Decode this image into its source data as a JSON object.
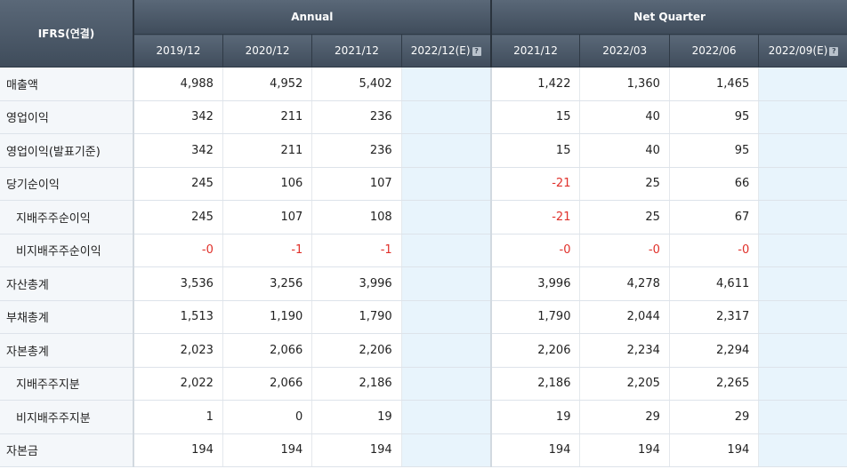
{
  "header": {
    "corner": "IFRS(연결)",
    "annual_label": "Annual",
    "quarter_label": "Net Quarter",
    "annual_periods": [
      "2019/12",
      "2020/12",
      "2021/12",
      "2022/12(E)"
    ],
    "quarter_periods": [
      "2021/12",
      "2022/03",
      "2022/06",
      "2022/09(E)"
    ],
    "estimate_icon": "?"
  },
  "rows": [
    {
      "label": "매출액",
      "sub": false,
      "annual": [
        "4,988",
        "4,952",
        "5,402",
        ""
      ],
      "quarter": [
        "1,422",
        "1,360",
        "1,465",
        ""
      ]
    },
    {
      "label": "영업이익",
      "sub": false,
      "annual": [
        "342",
        "211",
        "236",
        ""
      ],
      "quarter": [
        "15",
        "40",
        "95",
        ""
      ]
    },
    {
      "label": "영업이익(발표기준)",
      "sub": false,
      "annual": [
        "342",
        "211",
        "236",
        ""
      ],
      "quarter": [
        "15",
        "40",
        "95",
        ""
      ]
    },
    {
      "label": "당기순이익",
      "sub": false,
      "annual": [
        "245",
        "106",
        "107",
        ""
      ],
      "quarter": [
        "-21",
        "25",
        "66",
        ""
      ]
    },
    {
      "label": "지배주주순이익",
      "sub": true,
      "annual": [
        "245",
        "107",
        "108",
        ""
      ],
      "quarter": [
        "-21",
        "25",
        "67",
        ""
      ]
    },
    {
      "label": "비지배주주순이익",
      "sub": true,
      "annual": [
        "-0",
        "-1",
        "-1",
        ""
      ],
      "quarter": [
        "-0",
        "-0",
        "-0",
        ""
      ]
    },
    {
      "label": "자산총계",
      "sub": false,
      "annual": [
        "3,536",
        "3,256",
        "3,996",
        ""
      ],
      "quarter": [
        "3,996",
        "4,278",
        "4,611",
        ""
      ]
    },
    {
      "label": "부채총계",
      "sub": false,
      "annual": [
        "1,513",
        "1,190",
        "1,790",
        ""
      ],
      "quarter": [
        "1,790",
        "2,044",
        "2,317",
        ""
      ]
    },
    {
      "label": "자본총계",
      "sub": false,
      "annual": [
        "2,023",
        "2,066",
        "2,206",
        ""
      ],
      "quarter": [
        "2,206",
        "2,234",
        "2,294",
        ""
      ]
    },
    {
      "label": "지배주주지분",
      "sub": true,
      "annual": [
        "2,022",
        "2,066",
        "2,186",
        ""
      ],
      "quarter": [
        "2,186",
        "2,205",
        "2,265",
        ""
      ]
    },
    {
      "label": "비지배주주지분",
      "sub": true,
      "annual": [
        "1",
        "0",
        "19",
        ""
      ],
      "quarter": [
        "19",
        "29",
        "29",
        ""
      ]
    },
    {
      "label": "자본금",
      "sub": false,
      "annual": [
        "194",
        "194",
        "194",
        ""
      ],
      "quarter": [
        "194",
        "194",
        "194",
        ""
      ]
    }
  ],
  "colors": {
    "header_bg": "#4a5766",
    "estimate_bg": "#e8f4fc",
    "negative": "#e0302a",
    "label_bg": "#f4f7fa"
  }
}
